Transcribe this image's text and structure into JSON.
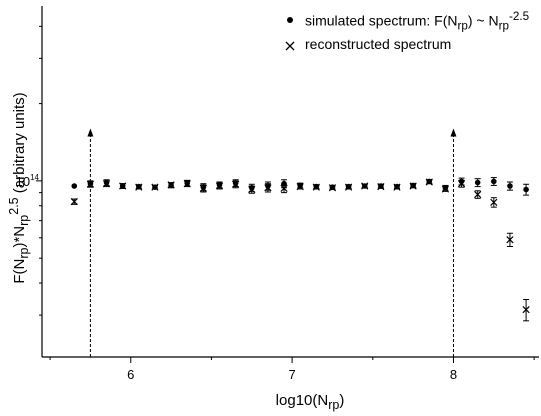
{
  "chart_data": {
    "type": "scatter",
    "ylabel": "F(N<sub>rp</sub>)*N<sub>rp</sub><sup>2.5</sup>  (arbitrary units)",
    "xlabel": "log10(N<sub>rp</sub>)",
    "xlim": [
      5.45,
      8.53
    ],
    "x_ticks": [
      6,
      7,
      8
    ],
    "y_scale": "log",
    "ylim": [
      20600000000000.0,
      480000000000000.0
    ],
    "y_tick_label": "10<sup>14</sup>",
    "y_tick_value": 100000000000000.0,
    "legend_position": "top-right",
    "series": [
      {
        "name": "simulated spectrum: F(N<sub>rp</sub>) ~ N<sub>rp</sub><sup>-2.5</sup>",
        "marker": "dot",
        "points": [
          {
            "x": 5.65,
            "y": 95500000000000.0,
            "err": 0
          },
          {
            "x": 5.75,
            "y": 97500000000000.0,
            "err": 2500000000000.0
          },
          {
            "x": 5.85,
            "y": 98500000000000.0,
            "err": 2500000000000.0
          },
          {
            "x": 5.95,
            "y": 95500000000000.0,
            "err": 2000000000000.0
          },
          {
            "x": 6.05,
            "y": 95000000000000.0,
            "err": 1500000000000.0
          },
          {
            "x": 6.15,
            "y": 94500000000000.0,
            "err": 1500000000000.0
          },
          {
            "x": 6.25,
            "y": 96000000000000.0,
            "err": 2000000000000.0
          },
          {
            "x": 6.35,
            "y": 98000000000000.0,
            "err": 2500000000000.0
          },
          {
            "x": 6.45,
            "y": 94500000000000.0,
            "err": 3000000000000.0
          },
          {
            "x": 6.55,
            "y": 96500000000000.0,
            "err": 2500000000000.0
          },
          {
            "x": 6.65,
            "y": 98000000000000.0,
            "err": 3000000000000.0
          },
          {
            "x": 6.75,
            "y": 94000000000000.0,
            "err": 3000000000000.0
          },
          {
            "x": 6.85,
            "y": 95500000000000.0,
            "err": 3500000000000.0
          },
          {
            "x": 6.95,
            "y": 97500000000000.0,
            "err": 3500000000000.0
          },
          {
            "x": 7.05,
            "y": 96000000000000.0,
            "err": 2000000000000.0
          },
          {
            "x": 7.15,
            "y": 95000000000000.0,
            "err": 1500000000000.0
          },
          {
            "x": 7.25,
            "y": 94500000000000.0,
            "err": 1500000000000.0
          },
          {
            "x": 7.35,
            "y": 95000000000000.0,
            "err": 1500000000000.0
          },
          {
            "x": 7.45,
            "y": 95500000000000.0,
            "err": 1500000000000.0
          },
          {
            "x": 7.55,
            "y": 95500000000000.0,
            "err": 1500000000000.0
          },
          {
            "x": 7.65,
            "y": 95000000000000.0,
            "err": 1500000000000.0
          },
          {
            "x": 7.75,
            "y": 96000000000000.0,
            "err": 1500000000000.0
          },
          {
            "x": 7.85,
            "y": 99500000000000.0,
            "err": 1500000000000.0
          },
          {
            "x": 7.95,
            "y": 94000000000000.0,
            "err": 2000000000000.0
          },
          {
            "x": 8.05,
            "y": 99500000000000.0,
            "err": 3000000000000.0
          },
          {
            "x": 8.15,
            "y": 98500000000000.0,
            "err": 3500000000000.0
          },
          {
            "x": 8.25,
            "y": 99500000000000.0,
            "err": 3500000000000.0
          },
          {
            "x": 8.35,
            "y": 95500000000000.0,
            "err": 3500000000000.0
          },
          {
            "x": 8.45,
            "y": 92500000000000.0,
            "err": 4500000000000.0
          }
        ]
      },
      {
        "name": "reconstructed spectrum",
        "marker": "cross",
        "points": [
          {
            "x": 5.65,
            "y": 83000000000000.0,
            "err": 2000000000000.0
          },
          {
            "x": 5.75,
            "y": 97000000000000.0,
            "err": 2500000000000.0
          },
          {
            "x": 5.85,
            "y": 97500000000000.0,
            "err": 2500000000000.0
          },
          {
            "x": 5.95,
            "y": 95500000000000.0,
            "err": 2000000000000.0
          },
          {
            "x": 6.05,
            "y": 94500000000000.0,
            "err": 1500000000000.0
          },
          {
            "x": 6.15,
            "y": 94500000000000.0,
            "err": 1500000000000.0
          },
          {
            "x": 6.25,
            "y": 96500000000000.0,
            "err": 2000000000000.0
          },
          {
            "x": 6.35,
            "y": 97500000000000.0,
            "err": 2500000000000.0
          },
          {
            "x": 6.45,
            "y": 93500000000000.0,
            "err": 3000000000000.0
          },
          {
            "x": 6.55,
            "y": 95500000000000.0,
            "err": 2500000000000.0
          },
          {
            "x": 6.65,
            "y": 97000000000000.0,
            "err": 3000000000000.0
          },
          {
            "x": 6.75,
            "y": 92500000000000.0,
            "err": 3000000000000.0
          },
          {
            "x": 6.85,
            "y": 94000000000000.0,
            "err": 3500000000000.0
          },
          {
            "x": 6.95,
            "y": 93500000000000.0,
            "err": 3500000000000.0
          },
          {
            "x": 7.05,
            "y": 95000000000000.0,
            "err": 2000000000000.0
          },
          {
            "x": 7.15,
            "y": 94500000000000.0,
            "err": 1500000000000.0
          },
          {
            "x": 7.25,
            "y": 94000000000000.0,
            "err": 1500000000000.0
          },
          {
            "x": 7.35,
            "y": 94500000000000.0,
            "err": 1500000000000.0
          },
          {
            "x": 7.45,
            "y": 95500000000000.0,
            "err": 1500000000000.0
          },
          {
            "x": 7.55,
            "y": 95000000000000.0,
            "err": 1500000000000.0
          },
          {
            "x": 7.65,
            "y": 94500000000000.0,
            "err": 1500000000000.0
          },
          {
            "x": 7.75,
            "y": 95500000000000.0,
            "err": 1500000000000.0
          },
          {
            "x": 7.85,
            "y": 99000000000000.0,
            "err": 1500000000000.0
          },
          {
            "x": 7.95,
            "y": 93000000000000.0,
            "err": 2000000000000.0
          },
          {
            "x": 8.05,
            "y": 97500000000000.0,
            "err": 3000000000000.0
          },
          {
            "x": 8.15,
            "y": 88500000000000.0,
            "err": 3000000000000.0
          },
          {
            "x": 8.25,
            "y": 82500000000000.0,
            "err": 3500000000000.0
          },
          {
            "x": 8.35,
            "y": 59000000000000.0,
            "err": 3500000000000.0
          },
          {
            "x": 8.45,
            "y": 31500000000000.0,
            "err": 3000000000000.0
          }
        ]
      }
    ],
    "annotations": [
      {
        "type": "vertical-arrow",
        "x": 5.75,
        "y_top": 160000000000000.0,
        "style": "dashed"
      },
      {
        "type": "vertical-arrow",
        "x": 8.0,
        "y_top": 160000000000000.0,
        "style": "dashed"
      }
    ]
  }
}
